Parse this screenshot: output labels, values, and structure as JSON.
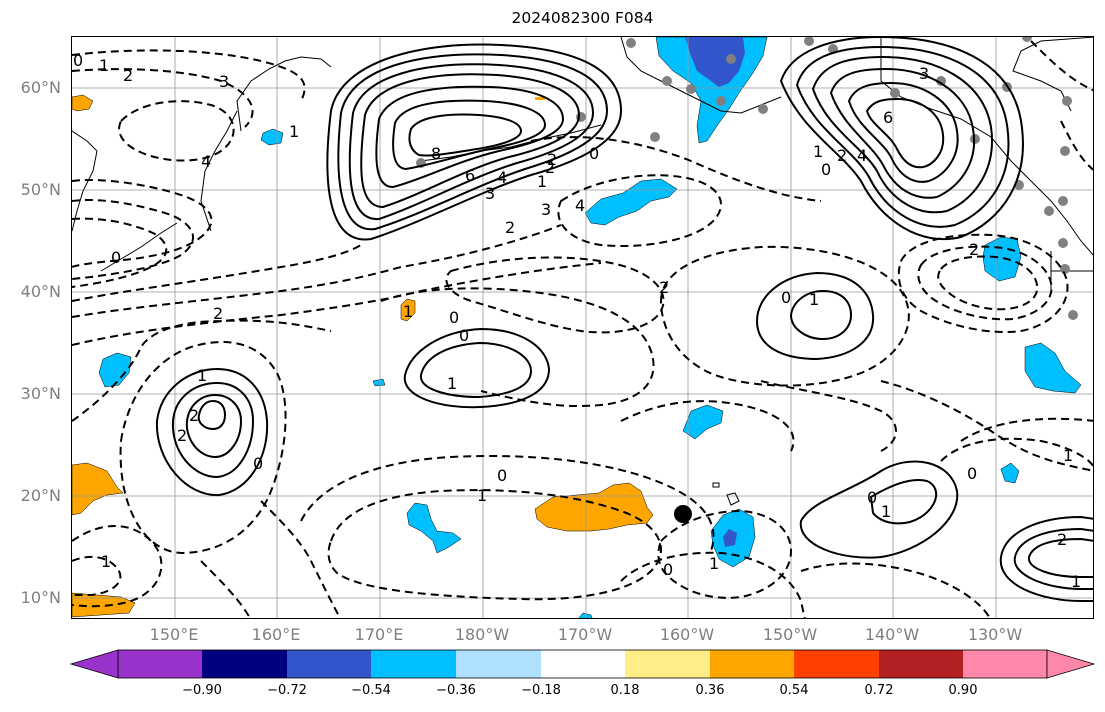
{
  "title": "2024082300 F084",
  "lat_labels": [
    "60°N",
    "50°N",
    "40°N",
    "30°N",
    "20°N",
    "10°N"
  ],
  "lon_labels": [
    "150°E",
    "160°E",
    "170°E",
    "180°W",
    "170°W",
    "160°W",
    "150°W",
    "140°W",
    "130°W"
  ],
  "colorbar": {
    "ticks": [
      "−0.90",
      "−0.72",
      "−0.54",
      "−0.36",
      "−0.18",
      "0.18",
      "0.36",
      "0.54",
      "0.72",
      "0.90"
    ],
    "colors": [
      "#9933cc",
      "#000080",
      "#3355cc",
      "#00bfff",
      "#b0e0ff",
      "#ffffff",
      "#ffee88",
      "#ffa500",
      "#ff4000",
      "#b22222",
      "#ff88aa"
    ]
  },
  "contour_labels": [
    "0",
    "1",
    "2",
    "3",
    "4",
    "1",
    "0",
    "8",
    "6",
    "4",
    "3",
    "2",
    "0",
    "1",
    "2",
    "4",
    "3",
    "2",
    "3",
    "6",
    "4",
    "2",
    "0",
    "1",
    "2",
    "2",
    "0",
    "2",
    "1",
    "0",
    "1",
    "0",
    "1",
    "2",
    "2",
    "0",
    "1",
    "0",
    "1",
    "0",
    "1",
    "1",
    "2",
    "1",
    "0",
    "0",
    "1",
    "1"
  ],
  "colors": {
    "blue": "#00bfff",
    "darkblue": "#3355cc",
    "orange": "#ffa500",
    "gray": "#808080",
    "black": "#000000"
  }
}
